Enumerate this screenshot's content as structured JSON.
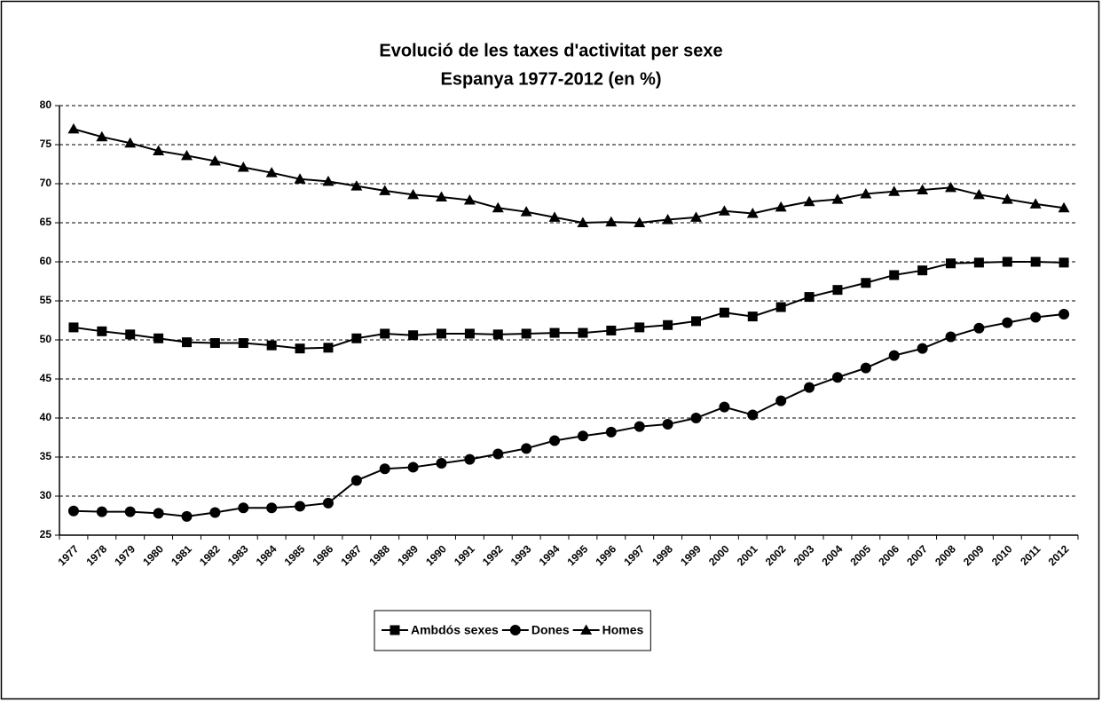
{
  "chart_data": {
    "type": "line",
    "title": "Evolució de les taxes d'activitat per sexe",
    "subtitle": "Espanya 1977-2012 (en %)",
    "categories": [
      "1977",
      "1978",
      "1979",
      "1980",
      "1981",
      "1982",
      "1983",
      "1984",
      "1985",
      "1986",
      "1987",
      "1988",
      "1989",
      "1990",
      "1991",
      "1992",
      "1993",
      "1994",
      "1995",
      "1996",
      "1997",
      "1998",
      "1999",
      "2000",
      "2001",
      "2002",
      "2003",
      "2004",
      "2005",
      "2006",
      "2007",
      "2008",
      "2009",
      "2010",
      "2011",
      "2012"
    ],
    "series": [
      {
        "name": "Ambdós sexes",
        "color": "#000000",
        "marker": "square",
        "values": [
          51.6,
          51.1,
          50.7,
          50.2,
          49.7,
          49.6,
          49.6,
          49.3,
          48.9,
          49.0,
          50.2,
          50.8,
          50.6,
          50.8,
          50.8,
          50.7,
          50.8,
          50.9,
          50.9,
          51.2,
          51.6,
          51.9,
          52.4,
          53.5,
          53.0,
          54.2,
          55.5,
          56.4,
          57.3,
          58.3,
          58.9,
          59.8,
          59.9,
          60.0,
          60.0,
          59.9
        ]
      },
      {
        "name": "Dones",
        "color": "#000000",
        "marker": "circle",
        "values": [
          28.1,
          28.0,
          28.0,
          27.8,
          27.4,
          27.9,
          28.5,
          28.5,
          28.7,
          29.1,
          32.0,
          33.5,
          33.7,
          34.2,
          34.7,
          35.4,
          36.1,
          37.1,
          37.7,
          38.2,
          38.9,
          39.2,
          40.0,
          41.4,
          40.4,
          42.2,
          43.9,
          45.2,
          46.4,
          48.0,
          48.9,
          50.4,
          51.5,
          52.2,
          52.9,
          53.3
        ]
      },
      {
        "name": "Homes",
        "color": "#000000",
        "marker": "triangle",
        "values": [
          77.0,
          76.0,
          75.2,
          74.2,
          73.6,
          72.9,
          72.1,
          71.4,
          70.6,
          70.3,
          69.7,
          69.1,
          68.6,
          68.3,
          67.9,
          66.9,
          66.4,
          65.7,
          65.0,
          65.1,
          65.0,
          65.4,
          65.7,
          66.5,
          66.2,
          67.0,
          67.7,
          68.0,
          68.7,
          69.0,
          69.2,
          69.5,
          68.6,
          68.0,
          67.4,
          66.9
        ]
      }
    ],
    "ylim": [
      25,
      80
    ],
    "yticks": [
      25,
      30,
      35,
      40,
      45,
      50,
      55,
      60,
      65,
      70,
      75,
      80
    ],
    "grid": true,
    "legend": "bottom"
  }
}
